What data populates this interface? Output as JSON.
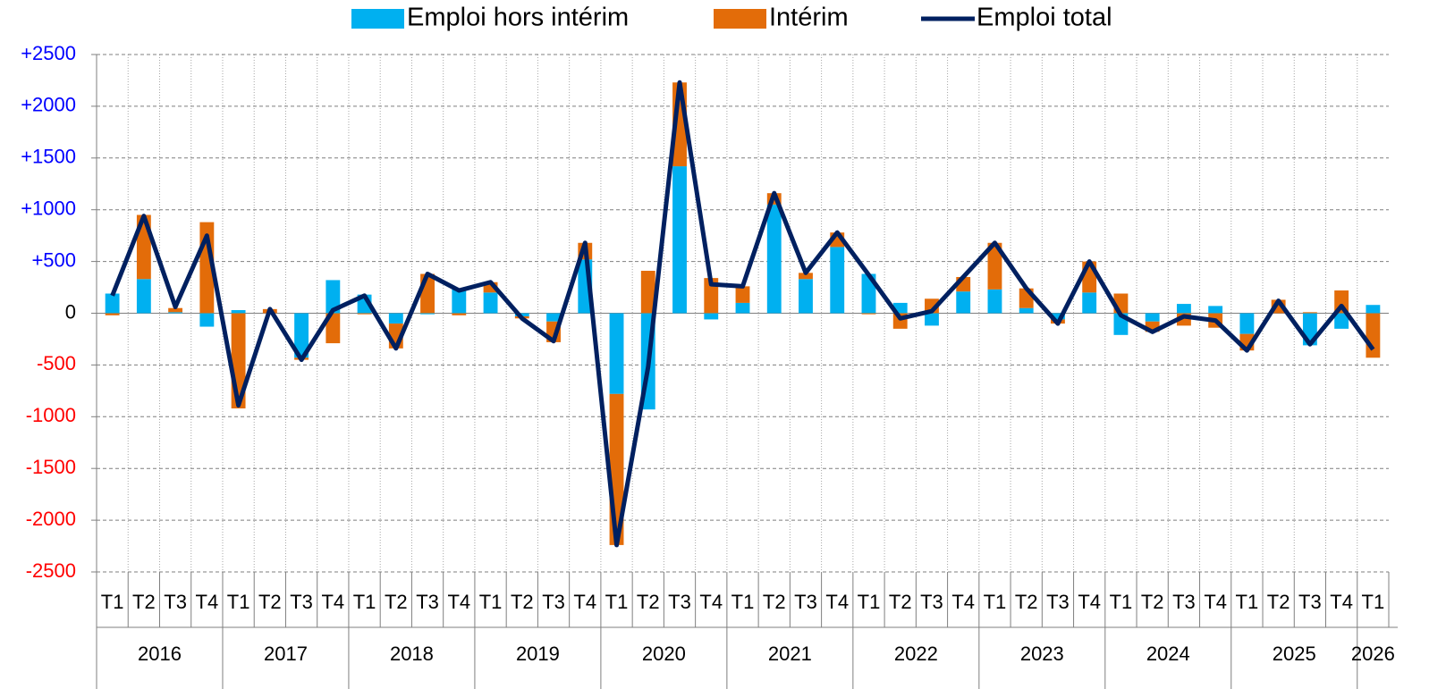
{
  "chart_data": {
    "type": "bar-line",
    "categories": [
      "T1",
      "T2",
      "T3",
      "T4",
      "T1",
      "T2",
      "T3",
      "T4",
      "T1",
      "T2",
      "T3",
      "T4",
      "T1",
      "T2",
      "T3",
      "T4",
      "T1",
      "T2",
      "T3",
      "T4",
      "T1",
      "T2",
      "T3",
      "T4",
      "T1",
      "T2",
      "T3",
      "T4",
      "T1",
      "T2",
      "T3",
      "T4",
      "T1",
      "T2",
      "T3",
      "T4",
      "T1",
      "T2",
      "T3",
      "T4",
      "T1"
    ],
    "groups": [
      "2016",
      "2017",
      "2018",
      "2019",
      "2020",
      "2021",
      "2022",
      "2023",
      "2024",
      "2025",
      "2026"
    ],
    "series": [
      {
        "name": "Emploi hors intérim",
        "type": "bar",
        "color": "#00b0f0",
        "values": [
          190,
          330,
          10,
          -130,
          30,
          0,
          -430,
          320,
          180,
          -100,
          -10,
          230,
          200,
          -30,
          -80,
          520,
          -780,
          -930,
          1420,
          -60,
          100,
          1050,
          330,
          640,
          380,
          100,
          -120,
          210,
          230,
          50,
          -60,
          200,
          -210,
          -80,
          90,
          70,
          -200,
          0,
          -310,
          -150,
          80
        ]
      },
      {
        "name": "Intérim",
        "type": "bar",
        "color": "#e36c09",
        "values": [
          -20,
          620,
          40,
          880,
          -920,
          40,
          -20,
          -290,
          -10,
          -240,
          380,
          -20,
          100,
          -20,
          -200,
          160,
          -1460,
          410,
          810,
          340,
          160,
          110,
          60,
          140,
          -10,
          -150,
          140,
          140,
          450,
          190,
          -40,
          300,
          190,
          -100,
          -120,
          -140,
          -160,
          130,
          10,
          220,
          -430
        ]
      },
      {
        "name": "Emploi total",
        "type": "line",
        "color": "#002060",
        "values": [
          170,
          940,
          60,
          750,
          -890,
          40,
          -450,
          30,
          170,
          -340,
          380,
          220,
          300,
          -50,
          -270,
          680,
          -2240,
          -520,
          2230,
          280,
          260,
          1160,
          390,
          780,
          370,
          -50,
          20,
          350,
          680,
          240,
          -100,
          500,
          -20,
          -180,
          -30,
          -70,
          -360,
          120,
          -300,
          70,
          -350
        ]
      }
    ],
    "ylim": [
      -2500,
      2500
    ],
    "yticks": [
      {
        "value": 2500,
        "label": "+2500"
      },
      {
        "value": 2000,
        "label": "+2000"
      },
      {
        "value": 1500,
        "label": "+1500"
      },
      {
        "value": 1000,
        "label": "+1000"
      },
      {
        "value": 500,
        "label": "+500"
      },
      0,
      -500,
      -1000,
      -1500,
      -2000,
      -2500
    ],
    "grid": true,
    "legend": "top"
  }
}
